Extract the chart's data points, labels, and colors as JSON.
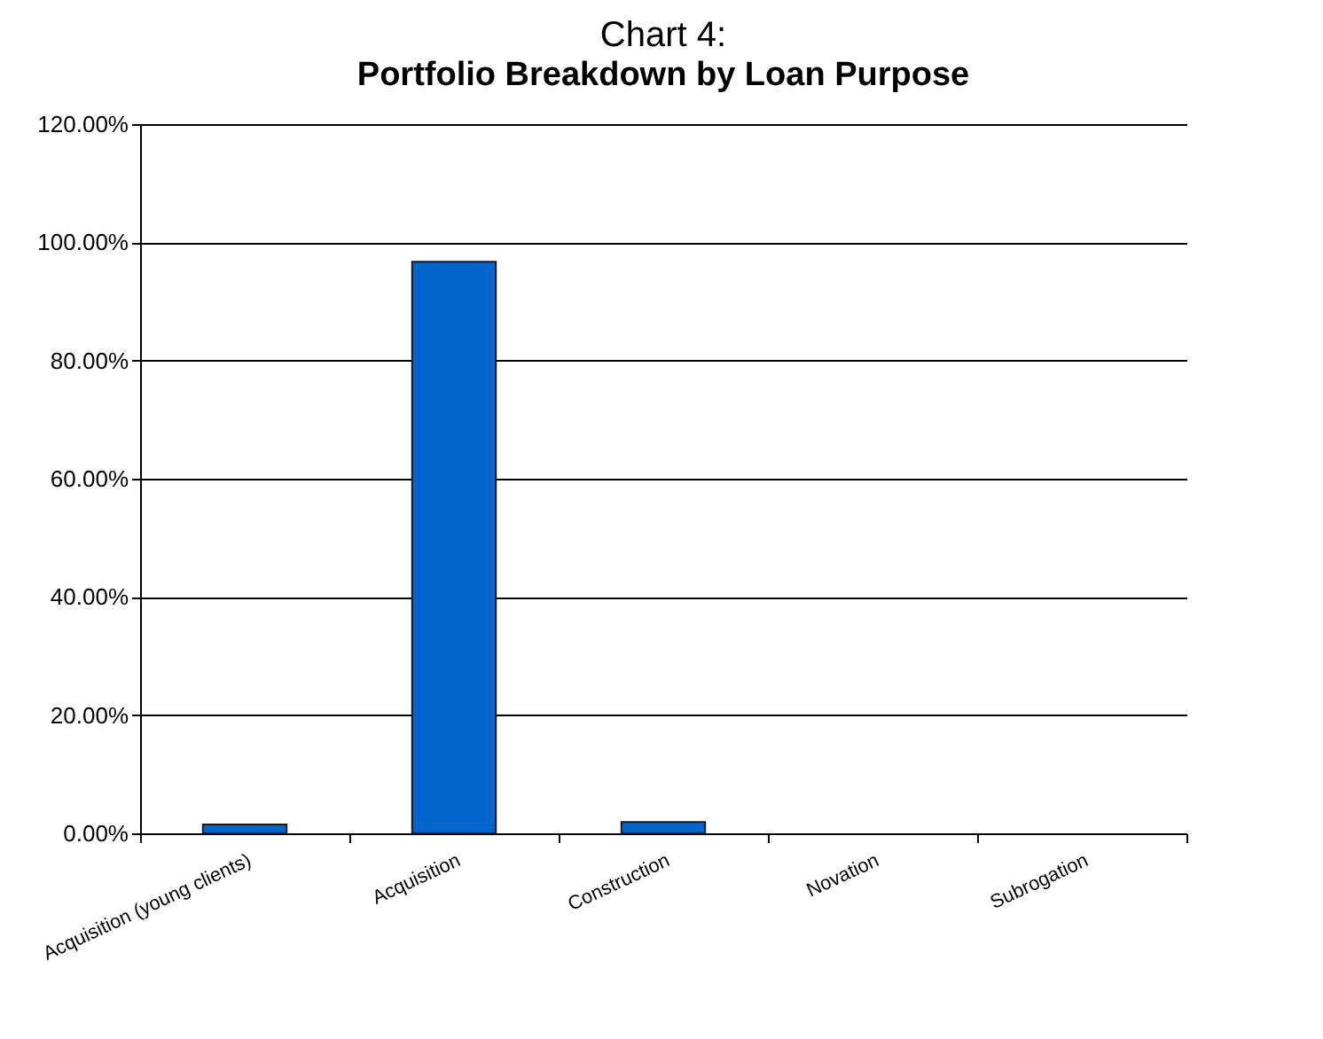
{
  "chart_data": {
    "type": "bar",
    "title": "Chart 4:",
    "subtitle": "Portfolio Breakdown by Loan Purpose",
    "categories": [
      "Acquisition (young clients)",
      "Acquisition",
      "Construction",
      "Novation",
      "Subrogation"
    ],
    "values": [
      1.5,
      96.7,
      1.9,
      0,
      0
    ],
    "color": "#0066cc",
    "ylim": [
      0,
      120
    ],
    "yticks": [
      {
        "value": 0,
        "label": "0.00%"
      },
      {
        "value": 20,
        "label": "20.00%"
      },
      {
        "value": 40,
        "label": "40.00%"
      },
      {
        "value": 60,
        "label": "60.00%"
      },
      {
        "value": 80,
        "label": "80.00%"
      },
      {
        "value": 100,
        "label": "100.00%"
      },
      {
        "value": 120,
        "label": "120.00%"
      }
    ],
    "grid": "y"
  }
}
